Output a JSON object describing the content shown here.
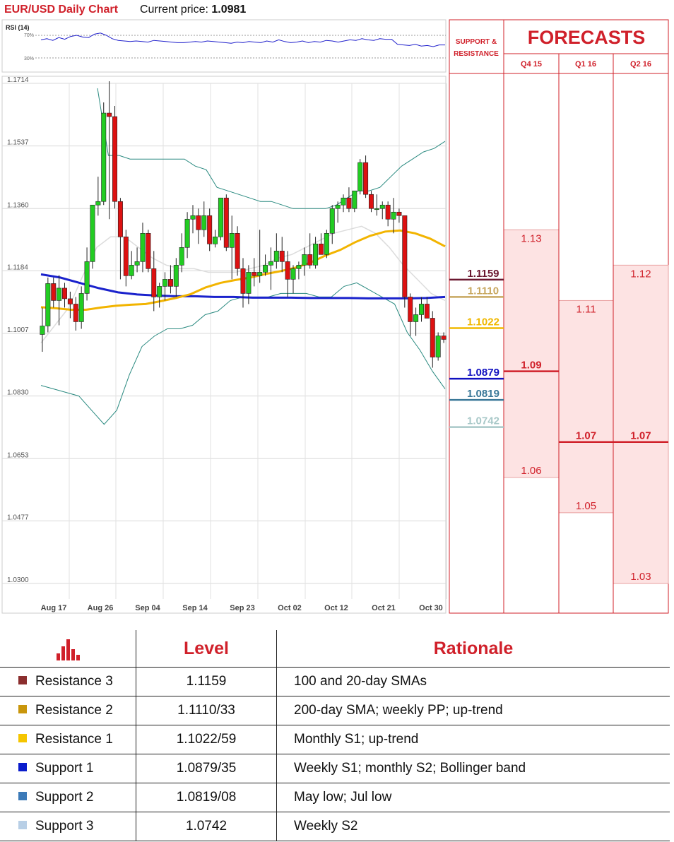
{
  "header": {
    "title": "EUR/USD Daily Chart",
    "price_label": "Current price: ",
    "price_value": "1.0981"
  },
  "rsi": {
    "label": "RSI (14)",
    "level_high": "70%",
    "level_low": "30%",
    "values": [
      62,
      64,
      61,
      66,
      63,
      68,
      70,
      67,
      66,
      72,
      74,
      70,
      64,
      61,
      60,
      59,
      60,
      59,
      58,
      61,
      60,
      59,
      58,
      57,
      57,
      58,
      59,
      58,
      60,
      59,
      58,
      57,
      56,
      58,
      57,
      59,
      58,
      57,
      60,
      58,
      62,
      59,
      57,
      58,
      60,
      57,
      59,
      58,
      61,
      60,
      58,
      60,
      62,
      61,
      64,
      62,
      61,
      64,
      63,
      63,
      54,
      53,
      52,
      54,
      51,
      52,
      50,
      53,
      53
    ]
  },
  "chart_data": {
    "type": "candlestick",
    "ylim": [
      1.03,
      1.1714
    ],
    "y_ticks": [
      "1.1714",
      "1.1537",
      "1.1360",
      "1.1184",
      "1.1007",
      "1.0830",
      "1.0653",
      "1.0477",
      "1.0300"
    ],
    "x_ticks": [
      "Aug 17",
      "Aug 26",
      "Sep 04",
      "Sep 14",
      "Sep 23",
      "Oct 02",
      "Oct 12",
      "Oct 21",
      "Oct 30"
    ],
    "candles": [
      [
        1.1004,
        1.108,
        1.0955,
        1.1028
      ],
      [
        1.1028,
        1.1165,
        1.101,
        1.1148
      ],
      [
        1.1148,
        1.1165,
        1.108,
        1.11
      ],
      [
        1.11,
        1.1172,
        1.103,
        1.1135
      ],
      [
        1.1135,
        1.115,
        1.108,
        1.1105
      ],
      [
        1.1105,
        1.1125,
        1.105,
        1.109
      ],
      [
        1.109,
        1.111,
        1.1015,
        1.104
      ],
      [
        1.104,
        1.114,
        1.102,
        1.112
      ],
      [
        1.112,
        1.125,
        1.11,
        1.121
      ],
      [
        1.121,
        1.137,
        1.119,
        1.137
      ],
      [
        1.137,
        1.145,
        1.134,
        1.138
      ],
      [
        1.138,
        1.166,
        1.137,
        1.163
      ],
      [
        1.163,
        1.172,
        1.133,
        1.162
      ],
      [
        1.162,
        1.165,
        1.136,
        1.138
      ],
      [
        1.138,
        1.139,
        1.116,
        1.128
      ],
      [
        1.128,
        1.13,
        1.114,
        1.117
      ],
      [
        1.117,
        1.124,
        1.116,
        1.12
      ],
      [
        1.12,
        1.125,
        1.118,
        1.121
      ],
      [
        1.121,
        1.132,
        1.118,
        1.129
      ],
      [
        1.129,
        1.13,
        1.118,
        1.119
      ],
      [
        1.119,
        1.124,
        1.107,
        1.111
      ],
      [
        1.111,
        1.115,
        1.108,
        1.114
      ],
      [
        1.114,
        1.118,
        1.11,
        1.116
      ],
      [
        1.116,
        1.12,
        1.112,
        1.114
      ],
      [
        1.114,
        1.122,
        1.111,
        1.12
      ],
      [
        1.12,
        1.129,
        1.118,
        1.125
      ],
      [
        1.125,
        1.135,
        1.122,
        1.133
      ],
      [
        1.133,
        1.137,
        1.129,
        1.134
      ],
      [
        1.134,
        1.136,
        1.126,
        1.13
      ],
      [
        1.13,
        1.138,
        1.128,
        1.134
      ],
      [
        1.134,
        1.136,
        1.124,
        1.126
      ],
      [
        1.126,
        1.13,
        1.125,
        1.128
      ],
      [
        1.128,
        1.139,
        1.127,
        1.139
      ],
      [
        1.139,
        1.14,
        1.124,
        1.125
      ],
      [
        1.125,
        1.134,
        1.116,
        1.129
      ],
      [
        1.129,
        1.131,
        1.117,
        1.119
      ],
      [
        1.119,
        1.122,
        1.108,
        1.112
      ],
      [
        1.112,
        1.12,
        1.109,
        1.118
      ],
      [
        1.118,
        1.122,
        1.114,
        1.117
      ],
      [
        1.117,
        1.13,
        1.115,
        1.118
      ],
      [
        1.118,
        1.123,
        1.117,
        1.12
      ],
      [
        1.12,
        1.125,
        1.113,
        1.121
      ],
      [
        1.121,
        1.129,
        1.119,
        1.124
      ],
      [
        1.124,
        1.128,
        1.118,
        1.121
      ],
      [
        1.121,
        1.124,
        1.111,
        1.116
      ],
      [
        1.116,
        1.12,
        1.112,
        1.119
      ],
      [
        1.119,
        1.121,
        1.116,
        1.12
      ],
      [
        1.12,
        1.125,
        1.117,
        1.123
      ],
      [
        1.123,
        1.129,
        1.119,
        1.12
      ],
      [
        1.12,
        1.128,
        1.119,
        1.126
      ],
      [
        1.126,
        1.129,
        1.123,
        1.123
      ],
      [
        1.123,
        1.13,
        1.122,
        1.129
      ],
      [
        1.129,
        1.137,
        1.126,
        1.136
      ],
      [
        1.136,
        1.138,
        1.132,
        1.137
      ],
      [
        1.137,
        1.14,
        1.135,
        1.139
      ],
      [
        1.139,
        1.142,
        1.135,
        1.136
      ],
      [
        1.136,
        1.14,
        1.135,
        1.141
      ],
      [
        1.141,
        1.15,
        1.14,
        1.149
      ],
      [
        1.149,
        1.151,
        1.139,
        1.14
      ],
      [
        1.14,
        1.141,
        1.135,
        1.136
      ],
      [
        1.136,
        1.14,
        1.134,
        1.136
      ],
      [
        1.136,
        1.138,
        1.133,
        1.137
      ],
      [
        1.137,
        1.138,
        1.131,
        1.133
      ],
      [
        1.133,
        1.139,
        1.129,
        1.135
      ],
      [
        1.135,
        1.136,
        1.132,
        1.134
      ],
      [
        1.134,
        1.134,
        1.108,
        1.111
      ],
      [
        1.111,
        1.112,
        1.1,
        1.104
      ],
      [
        1.104,
        1.108,
        1.1,
        1.106
      ],
      [
        1.106,
        1.111,
        1.104,
        1.109
      ],
      [
        1.109,
        1.111,
        1.105,
        1.105
      ],
      [
        1.105,
        1.107,
        1.091,
        1.094
      ],
      [
        1.094,
        1.101,
        1.093,
        1.1
      ],
      [
        1.1,
        1.101,
        1.098,
        1.099
      ]
    ],
    "bb_upper": [
      1.17,
      1.151,
      1.151,
      1.15,
      1.15,
      1.15,
      1.15,
      1.15,
      1.15,
      1.148,
      1.147,
      1.142,
      1.141,
      1.14,
      1.139,
      1.138,
      1.138,
      1.137,
      1.136,
      1.136,
      1.136,
      1.136,
      1.137,
      1.139,
      1.141,
      1.141,
      1.142,
      1.145,
      1.148,
      1.15,
      1.152,
      1.153,
      1.155
    ],
    "bb_lower": [
      1.086,
      1.085,
      1.084,
      1.083,
      1.079,
      1.075,
      1.079,
      1.089,
      1.097,
      1.1,
      1.102,
      1.102,
      1.103,
      1.106,
      1.107,
      1.11,
      1.111,
      1.111,
      1.111,
      1.112,
      1.112,
      1.112,
      1.111,
      1.111,
      1.114,
      1.115,
      1.113,
      1.111,
      1.109,
      1.101,
      1.096,
      1.09,
      1.085
    ],
    "bb_mid": [
      1.098,
      1.103,
      1.108,
      1.117,
      1.125,
      1.128,
      1.128,
      1.125,
      1.122,
      1.12,
      1.119,
      1.119,
      1.118,
      1.118,
      1.118,
      1.119,
      1.12,
      1.122,
      1.123,
      1.125,
      1.127,
      1.129,
      1.13,
      1.131,
      1.129,
      1.125,
      1.12,
      1.116,
      1.112,
      1.11
    ],
    "sma_yellow": [
      1.1081,
      1.1078,
      1.1074,
      1.1074,
      1.108,
      1.1085,
      1.1088,
      1.109,
      1.1098,
      1.1107,
      1.1118,
      1.1137,
      1.115,
      1.1158,
      1.1165,
      1.1175,
      1.1183,
      1.1193,
      1.1207,
      1.1227,
      1.1243,
      1.1265,
      1.1283,
      1.1295,
      1.1298,
      1.129,
      1.1275,
      1.1253
    ],
    "sma_blue": [
      1.1174,
      1.1165,
      1.115,
      1.1135,
      1.1123,
      1.1117,
      1.1114,
      1.1112,
      1.1112,
      1.111,
      1.111,
      1.1108,
      1.1108,
      1.1108,
      1.1107,
      1.1107,
      1.1107,
      1.1106,
      1.1106,
      1.1106,
      1.1107,
      1.111
    ]
  },
  "forecasts": {
    "title": "FORECASTS",
    "sr_header": [
      "SUPPORT &",
      "RESISTANCE"
    ],
    "quarters": [
      "Q4 15",
      "Q1 16",
      "Q2 16"
    ],
    "columns": [
      {
        "high": "1.13",
        "mid": "1.09",
        "low": "1.06",
        "high_v": 1.13,
        "mid_v": 1.09,
        "low_v": 1.06
      },
      {
        "high": "1.11",
        "mid": "1.07",
        "low": "1.05",
        "high_v": 1.11,
        "mid_v": 1.07,
        "low_v": 1.05
      },
      {
        "high": "1.12",
        "mid": "1.07",
        "low": "1.03",
        "high_v": 1.12,
        "mid_v": 1.07,
        "low_v": 1.03
      }
    ],
    "sr_levels": [
      {
        "label": "1.1159",
        "value": 1.1159,
        "color": "#6b1830"
      },
      {
        "label": "1.1110",
        "value": 1.111,
        "color": "#c8a860"
      },
      {
        "label": "1.1022",
        "value": 1.1022,
        "color": "#f0b800"
      },
      {
        "label": "1.0879",
        "value": 1.0879,
        "color": "#1010c0"
      },
      {
        "label": "1.0819",
        "value": 1.0819,
        "color": "#3a7898"
      },
      {
        "label": "1.0742",
        "value": 1.0742,
        "color": "#a8c8c8"
      }
    ]
  },
  "colors": {
    "bull": "#22cc22",
    "bear": "#dd1111",
    "accent": "#d0202a",
    "forecast_fill": "#fde3e3"
  },
  "table": {
    "headers": {
      "level": "Level",
      "rationale": "Rationale"
    },
    "icon": "bar-chart-icon",
    "rows": [
      {
        "name": "Resistance 3",
        "level": "1.1159",
        "rationale": "100 and 20-day SMAs",
        "color": "#8b2e2e"
      },
      {
        "name": "Resistance 2",
        "level": "1.1110/33",
        "rationale": "200-day SMA; weekly PP; up-trend",
        "color": "#c9960c"
      },
      {
        "name": "Resistance 1",
        "level": "1.1022/59",
        "rationale": "Monthly S1; up-trend",
        "color": "#f5c500"
      },
      {
        "name": "Support 1",
        "level": "1.0879/35",
        "rationale": "Weekly S1; monthly S2; Bollinger band",
        "color": "#0a1ccc"
      },
      {
        "name": "Support 2",
        "level": "1.0819/08",
        "rationale": "May low; Jul low",
        "color": "#3c7ab8"
      },
      {
        "name": "Support 3",
        "level": "1.0742",
        "rationale": "Weekly S2",
        "color": "#b8cfe6"
      }
    ]
  }
}
